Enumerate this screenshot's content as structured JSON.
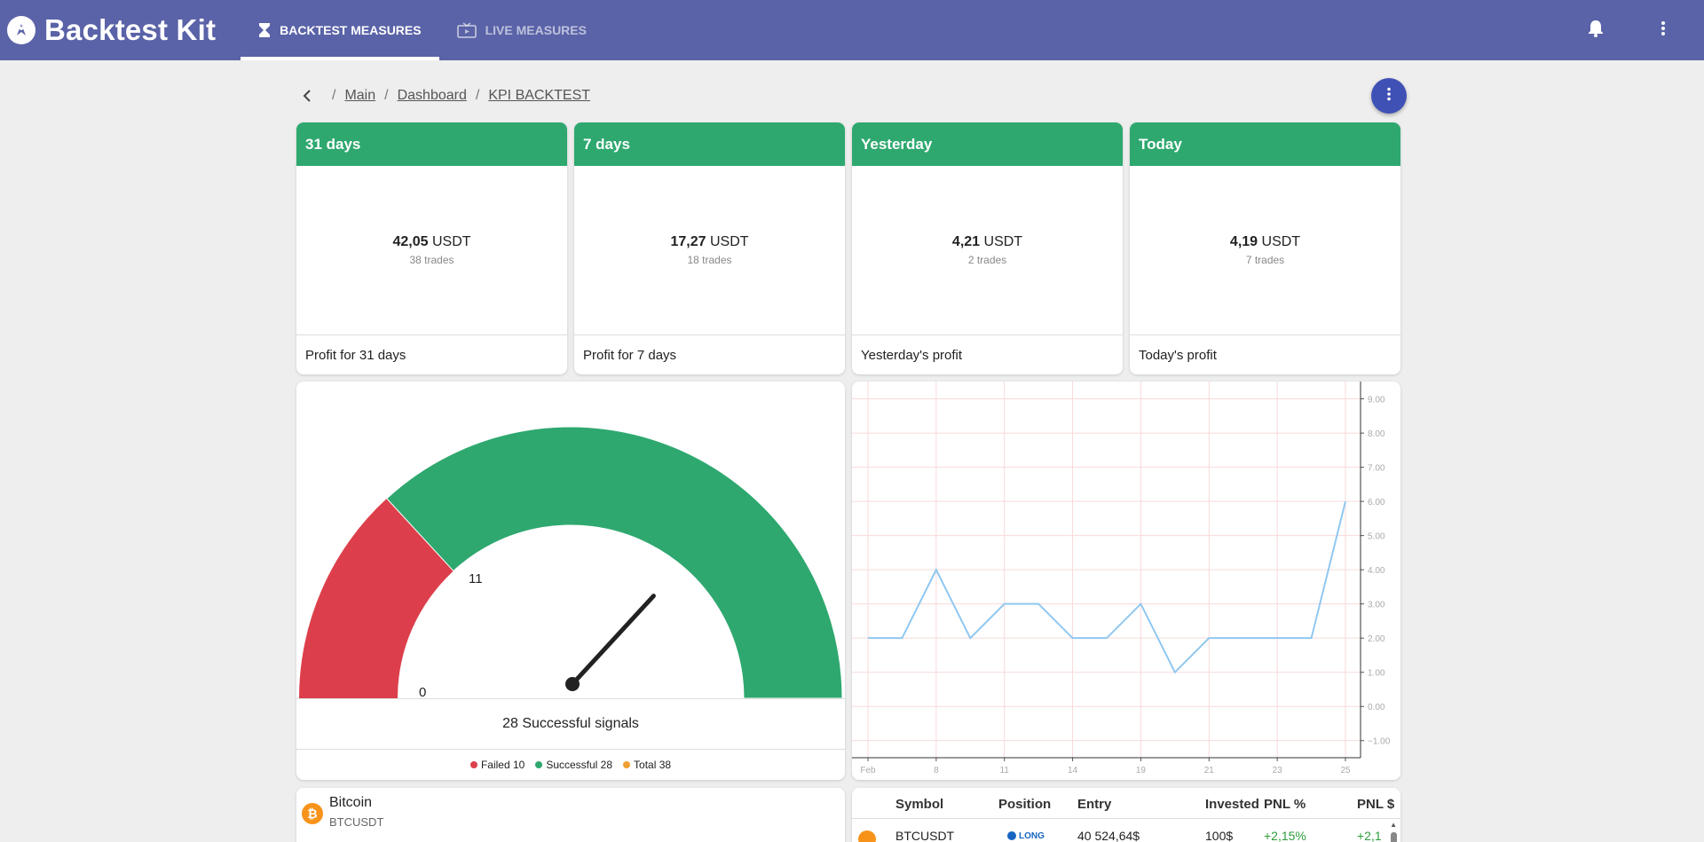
{
  "app": {
    "title": "Backtest Kit"
  },
  "tabs": [
    {
      "label": "Backtest measures",
      "icon": "hourglass-icon",
      "active": true
    },
    {
      "label": "Live measures",
      "icon": "live-tv-icon",
      "active": false
    }
  ],
  "breadcrumbs": [
    "Main",
    "Dashboard",
    "KPI BACKTEST"
  ],
  "kpis": [
    {
      "header": "31 days",
      "value": "42,05",
      "unit": "USDT",
      "trades": "38 trades",
      "footer": "Profit for 31 days"
    },
    {
      "header": "7 days",
      "value": "17,27",
      "unit": "USDT",
      "trades": "18 trades",
      "footer": "Profit for 7 days"
    },
    {
      "header": "Yesterday",
      "value": "4,21",
      "unit": "USDT",
      "trades": "2 trades",
      "footer": "Yesterday's profit"
    },
    {
      "header": "Today",
      "value": "4,19",
      "unit": "USDT",
      "trades": "7 trades",
      "footer": "Today's profit"
    }
  ],
  "gauge": {
    "min_label": "0",
    "threshold_label": "11",
    "caption_value": "28",
    "caption_text": "Successful signals",
    "failed": 10,
    "successful": 28,
    "total": 38,
    "needle_value": 28,
    "colors": {
      "failed": "#dc3f4b",
      "successful": "#2ea86f",
      "total": "#f0a030"
    },
    "legend": [
      {
        "label": "Failed 10",
        "color": "#dc3f4b"
      },
      {
        "label": "Successful 28",
        "color": "#2ea86f"
      },
      {
        "label": "Total 38",
        "color": "#f0a030"
      }
    ]
  },
  "chart_data": {
    "type": "line",
    "x": [
      "Feb",
      "",
      "8",
      "",
      "11",
      "",
      "14",
      "",
      "19",
      "",
      "21",
      "",
      "23",
      "",
      "25"
    ],
    "x_tick_labels": [
      "Feb",
      "8",
      "11",
      "14",
      "19",
      "21",
      "23",
      "25"
    ],
    "series": [
      {
        "values": [
          2,
          2,
          4,
          2,
          3,
          3,
          2,
          2,
          3,
          1,
          2,
          2,
          2,
          2,
          6
        ],
        "color": "#90c8f0"
      }
    ],
    "y_ticks": [
      "9.00",
      "8.00",
      "7.00",
      "6.00",
      "5.00",
      "4.00",
      "3.00",
      "2.00",
      "1.00",
      "0.00",
      "−1.00"
    ],
    "ylim": [
      -1.5,
      9.3
    ],
    "grid": true
  },
  "coin": {
    "name": "Bitcoin",
    "symbol": "BTCUSDT"
  },
  "table": {
    "columns": [
      "Symbol",
      "Position",
      "Entry",
      "Invested",
      "PNL %",
      "PNL $"
    ],
    "rows": [
      {
        "symbol": "BTCUSDT",
        "position": "LONG",
        "entry": "40 524,64$",
        "invested": "100$",
        "pnl_pct": "+2,15%",
        "pnl_usd": "+2,1"
      }
    ]
  }
}
